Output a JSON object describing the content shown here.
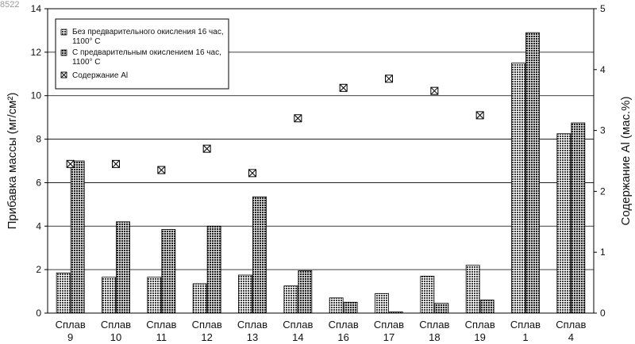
{
  "corner_text": "8522",
  "chart_data": {
    "type": "bar",
    "categories": [
      [
        "Сплав",
        "9"
      ],
      [
        "Сплав",
        "10"
      ],
      [
        "Сплав",
        "11"
      ],
      [
        "Сплав",
        "12"
      ],
      [
        "Сплав",
        "13"
      ],
      [
        "Сплав",
        "14"
      ],
      [
        "Сплав",
        "16"
      ],
      [
        "Сплав",
        "17"
      ],
      [
        "Сплав",
        "18"
      ],
      [
        "Сплав",
        "19"
      ],
      [
        "Сплав",
        "1"
      ],
      [
        "Сплав",
        "4"
      ]
    ],
    "series": [
      {
        "name": "Без предварительного окисления 16 час, 1100° С",
        "kind": "bar",
        "axis": "left",
        "color": "#555555",
        "values": [
          1.85,
          1.65,
          1.65,
          1.35,
          1.75,
          1.25,
          0.7,
          0.9,
          1.7,
          2.2,
          11.5,
          8.25
        ]
      },
      {
        "name": "С предварительным окислением 16 час, 1100° С",
        "kind": "bar",
        "axis": "left",
        "color": "#444444",
        "values": [
          7.0,
          4.2,
          3.85,
          4.0,
          5.35,
          1.95,
          0.5,
          0.05,
          0.45,
          0.6,
          12.9,
          8.75
        ]
      },
      {
        "name": "Содержание Al",
        "kind": "marker",
        "axis": "right",
        "color": "#222222",
        "values": [
          2.45,
          2.45,
          2.35,
          2.7,
          2.3,
          3.2,
          3.7,
          3.85,
          3.65,
          3.25,
          null,
          null
        ]
      }
    ],
    "ylabel": "Прибавка массы (мг/см²)",
    "y2label": "Содержание Al (мас.%)",
    "ylim": [
      0,
      14
    ],
    "y2lim": [
      0,
      5
    ],
    "yticks": [
      0,
      2,
      4,
      6,
      8,
      10,
      12,
      14
    ],
    "y2ticks": [
      0,
      1,
      2,
      3,
      4,
      5
    ],
    "grid": true,
    "legend_position": "top-left"
  }
}
